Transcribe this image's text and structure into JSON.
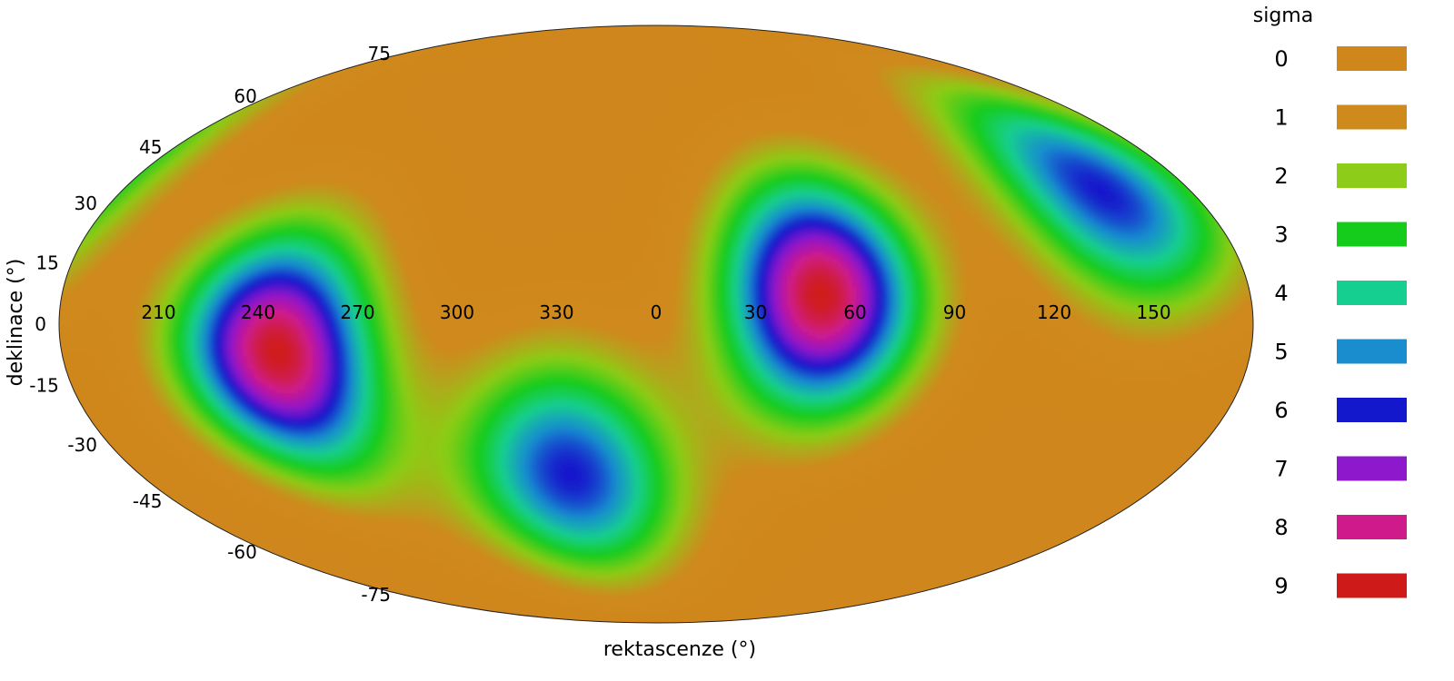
{
  "chart_data": {
    "type": "heatmap",
    "projection": "mollweide",
    "title": "",
    "xlabel": "rektascenze (°)",
    "ylabel": "deklinace (°)",
    "x_ticks": [
      210,
      240,
      270,
      300,
      330,
      0,
      30,
      60,
      90,
      120,
      150
    ],
    "y_ticks": [
      75,
      60,
      45,
      30,
      15,
      0,
      -15,
      -30,
      -45,
      -60,
      -75
    ],
    "center_ra": 0,
    "legend": {
      "title": "sigma",
      "position": "right",
      "levels": [
        {
          "label": "0",
          "color": "#cf861a"
        },
        {
          "label": "1",
          "color": "#cf8a1c"
        },
        {
          "label": "2",
          "color": "#8dcc18"
        },
        {
          "label": "3",
          "color": "#15cc1c"
        },
        {
          "label": "4",
          "color": "#14cf90"
        },
        {
          "label": "5",
          "color": "#1a8dcf"
        },
        {
          "label": "6",
          "color": "#1418cc"
        },
        {
          "label": "7",
          "color": "#8e18cc"
        },
        {
          "label": "8",
          "color": "#cf1a8c"
        },
        {
          "label": "9",
          "color": "#cf1a1a"
        }
      ]
    },
    "features": [
      {
        "ra": 245,
        "dec": -7,
        "peak_sigma": 9
      },
      {
        "ra": 50,
        "dec": 7,
        "peak_sigma": 9
      },
      {
        "ra": 330,
        "dec": -38,
        "peak_sigma": 6
      },
      {
        "ra": 150,
        "dec": 33,
        "peak_sigma": 6
      }
    ],
    "grid": false
  }
}
